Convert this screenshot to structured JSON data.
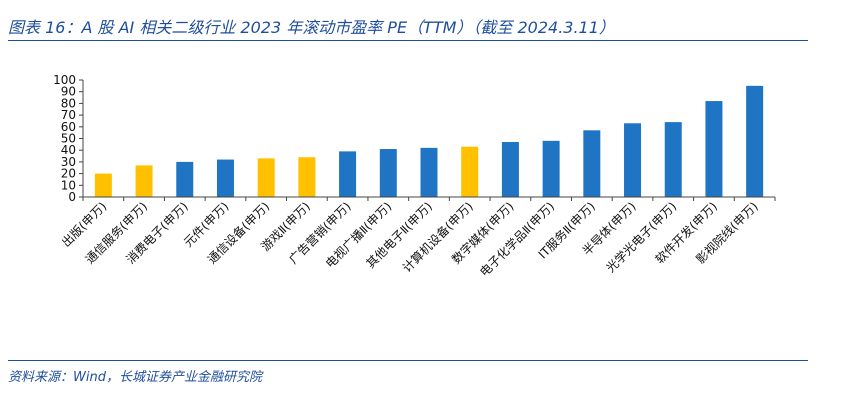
{
  "title": "图表 16：A 股 AI 相关二级行业 2023 年滚动市盈率 PE（TTM）（截至 2024.3.11）",
  "source": "资料来源：Wind，长城证券产业金融研究院",
  "colors": {
    "accent": "#1f4e9c",
    "blue": "#1f75c4",
    "yellow": "#ffc000",
    "axis": "#444444"
  },
  "chart_data": {
    "type": "bar",
    "title": "图表 16：A 股 AI 相关二级行业 2023 年滚动市盈率 PE（TTM）（截至 2024.3.11）",
    "xlabel": "",
    "ylabel": "",
    "ylim": [
      0,
      100
    ],
    "yticks": [
      0,
      10,
      20,
      30,
      40,
      50,
      60,
      70,
      80,
      90,
      100
    ],
    "grid": false,
    "legend": "none",
    "categories": [
      "出版(申万)",
      "通信服务(申万)",
      "消费电子(申万)",
      "元件(申万)",
      "通信设备(申万)",
      "游戏Ⅱ(申万)",
      "广告营销(申万)",
      "电视广播Ⅱ(申万)",
      "其他电子Ⅱ(申万)",
      "计算机设备(申万)",
      "数字媒体(申万)",
      "电子化学品Ⅱ(申万)",
      "IT服务Ⅱ(申万)",
      "半导体(申万)",
      "光学光电子(申万)",
      "软件开发(申万)",
      "影视院线(申万)"
    ],
    "values": [
      20,
      27,
      30,
      32,
      33,
      34,
      39,
      41,
      42,
      43,
      47,
      48,
      57,
      63,
      64,
      82,
      95
    ],
    "bar_colors": [
      "#ffc000",
      "#ffc000",
      "#1f75c4",
      "#1f75c4",
      "#ffc000",
      "#ffc000",
      "#1f75c4",
      "#1f75c4",
      "#1f75c4",
      "#ffc000",
      "#1f75c4",
      "#1f75c4",
      "#1f75c4",
      "#1f75c4",
      "#1f75c4",
      "#1f75c4",
      "#1f75c4"
    ]
  }
}
